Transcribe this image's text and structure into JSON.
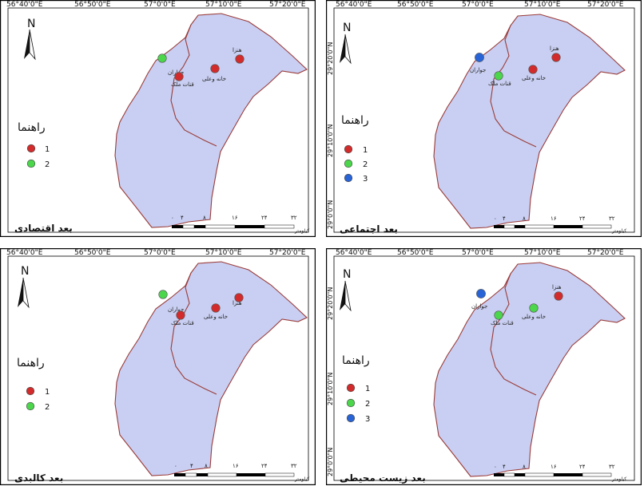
{
  "map": {
    "figure_type": "four-panel map",
    "colors": {
      "area_fill": "#c9cff2",
      "boundary": "#9a3b38",
      "class_1": "#d32b2b",
      "class_2": "#4bd64c",
      "class_3": "#2864d6"
    },
    "coordinate_labels": {
      "tl": {
        "top": [
          "56°40'0\"E",
          "56°50'0\"E",
          "57°0'0\"E",
          "57°10'0\"E",
          "57°20'0\"E"
        ],
        "left": [],
        "right": []
      },
      "tr": {
        "top": [
          "56°40'0\"E",
          "56°50'0\"E",
          "57°0'0\"E",
          "57°10'0\"E",
          "57°20'0\"E"
        ],
        "left": [
          "29°20'0\"N",
          "29°10'0\"N",
          "29°0'0\"N"
        ],
        "right": []
      },
      "bl": {
        "top": [
          "56°40'0\"E",
          "56°50'0\"E",
          "57°0'0\"E",
          "57°10'0\"E",
          "57°20'0\"E"
        ],
        "left": [],
        "right": []
      },
      "br": {
        "top": [
          "56°40'0\"E",
          "56°50'0\"E",
          "57°0'0\"E",
          "57°10'0\"E",
          "57°20'0\"E"
        ],
        "left": [
          "29°20'0\"N",
          "29°10'0\"N",
          "29°0'0\"N"
        ],
        "right": []
      }
    },
    "panels": [
      {
        "id": "tl",
        "north_label": "N",
        "legend_title": "راهنما",
        "legend_items": [
          {
            "label": "1",
            "class_id": "1"
          },
          {
            "label": "2",
            "class_id": "2"
          }
        ],
        "places": [
          {
            "name": "هنزا",
            "class_id": "1"
          },
          {
            "name": "جواران",
            "class_id": "2"
          },
          {
            "name": "قنات ملک",
            "class_id": "1"
          },
          {
            "name": "خانه وعلی",
            "class_id": "1"
          }
        ],
        "scale_ticks": [
          "۰",
          "۴",
          "۸",
          "۱۶",
          "۲۴",
          "۳۲"
        ],
        "scale_unit": "کیلومتر",
        "dimension_title": "بعد اقتصادی"
      },
      {
        "id": "tr",
        "north_label": "N",
        "legend_title": "راهنما",
        "legend_items": [
          {
            "label": "1",
            "class_id": "1"
          },
          {
            "label": "2",
            "class_id": "2"
          },
          {
            "label": "3",
            "class_id": "3"
          }
        ],
        "places": [
          {
            "name": "هنزا",
            "class_id": "1"
          },
          {
            "name": "جواران",
            "class_id": "3"
          },
          {
            "name": "قنات ملک",
            "class_id": "2"
          },
          {
            "name": "خانه وعلی",
            "class_id": "1"
          }
        ],
        "scale_ticks": [
          "۰",
          "۴",
          "۸",
          "۱۶",
          "۲۴",
          "۳۲"
        ],
        "scale_unit": "کیلومتر",
        "dimension_title": "بعد اجتماعی"
      },
      {
        "id": "bl",
        "north_label": "N",
        "legend_title": "راهنما",
        "legend_items": [
          {
            "label": "1",
            "class_id": "1"
          },
          {
            "label": "2",
            "class_id": "2"
          }
        ],
        "places": [
          {
            "name": "هنزا",
            "class_id": "1"
          },
          {
            "name": "جواران",
            "class_id": "2"
          },
          {
            "name": "قنات ملک",
            "class_id": "1"
          },
          {
            "name": "خانه وعلی",
            "class_id": "1"
          }
        ],
        "scale_ticks": [
          "۰",
          "۴",
          "۸",
          "۱۶",
          "۲۴",
          "۳۲"
        ],
        "scale_unit": "کیلومتر",
        "dimension_title": "بعد کالبدی"
      },
      {
        "id": "br",
        "north_label": "N",
        "legend_title": "راهنما",
        "legend_items": [
          {
            "label": "1",
            "class_id": "1"
          },
          {
            "label": "2",
            "class_id": "2"
          },
          {
            "label": "3",
            "class_id": "3"
          }
        ],
        "places": [
          {
            "name": "هنزا",
            "class_id": "1"
          },
          {
            "name": "جواران",
            "class_id": "3"
          },
          {
            "name": "قنات ملک",
            "class_id": "2"
          },
          {
            "name": "خانه وعلی",
            "class_id": "2"
          }
        ],
        "scale_ticks": [
          "۰",
          "۴",
          "۸",
          "۱۶",
          "۲۴",
          "۳۲"
        ],
        "scale_unit": "کیلومتر",
        "dimension_title": "بعد زیست محیطی"
      }
    ]
  }
}
